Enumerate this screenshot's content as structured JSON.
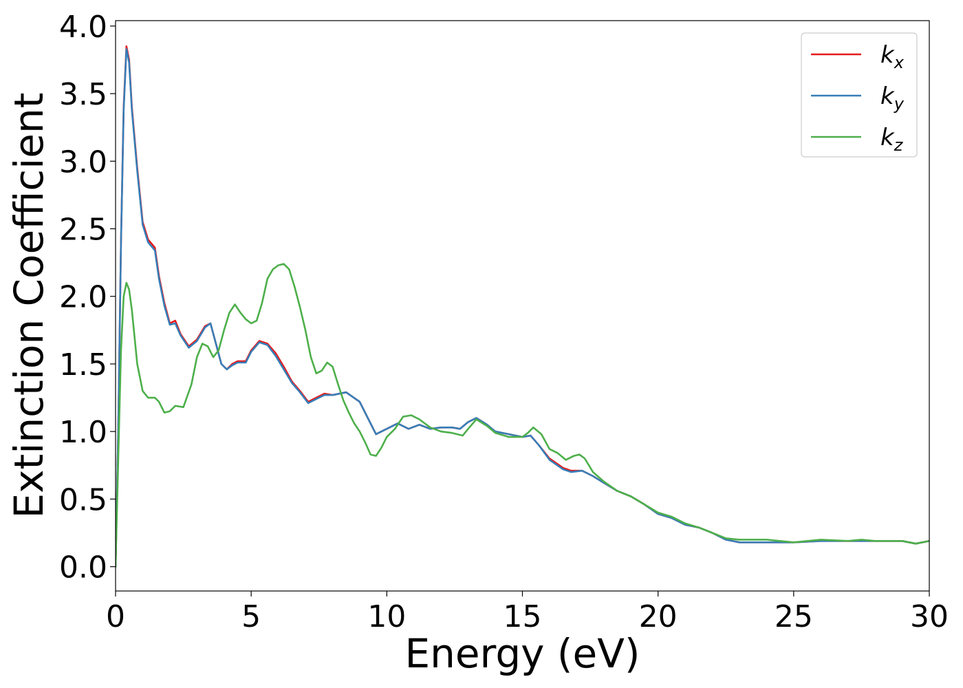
{
  "chart_data": {
    "type": "line",
    "title": "",
    "xlabel": "Energy (eV)",
    "ylabel": "Extinction Coefficient",
    "xlim": [
      0,
      30
    ],
    "ylim": [
      -0.18,
      4.04
    ],
    "x_ticks": [
      0,
      5,
      10,
      15,
      20,
      25,
      30
    ],
    "y_ticks": [
      0.0,
      0.5,
      1.0,
      1.5,
      2.0,
      2.5,
      3.0,
      3.5,
      4.0
    ],
    "x_tick_labels": [
      "0",
      "5",
      "10",
      "15",
      "20",
      "25",
      "30"
    ],
    "y_tick_labels": [
      "0.0",
      "0.5",
      "1.0",
      "1.5",
      "2.0",
      "2.5",
      "3.0",
      "3.5",
      "4.0"
    ],
    "grid": false,
    "legend_position": "top-right",
    "series": [
      {
        "name": "k_x",
        "legend_main": "k",
        "legend_sub": "x",
        "color": "#e41a1c",
        "points": [
          [
            0,
            0
          ],
          [
            0.1,
            1.0
          ],
          [
            0.2,
            2.4
          ],
          [
            0.3,
            3.4
          ],
          [
            0.4,
            3.85
          ],
          [
            0.5,
            3.75
          ],
          [
            0.6,
            3.4
          ],
          [
            0.8,
            2.95
          ],
          [
            1.0,
            2.55
          ],
          [
            1.2,
            2.42
          ],
          [
            1.45,
            2.36
          ],
          [
            1.6,
            2.15
          ],
          [
            1.8,
            1.95
          ],
          [
            2.0,
            1.8
          ],
          [
            2.2,
            1.82
          ],
          [
            2.4,
            1.72
          ],
          [
            2.7,
            1.63
          ],
          [
            3.0,
            1.68
          ],
          [
            3.3,
            1.78
          ],
          [
            3.5,
            1.8
          ],
          [
            3.7,
            1.65
          ],
          [
            3.9,
            1.5
          ],
          [
            4.1,
            1.46
          ],
          [
            4.3,
            1.5
          ],
          [
            4.5,
            1.52
          ],
          [
            4.8,
            1.52
          ],
          [
            5.0,
            1.6
          ],
          [
            5.3,
            1.67
          ],
          [
            5.6,
            1.65
          ],
          [
            5.9,
            1.58
          ],
          [
            6.2,
            1.48
          ],
          [
            6.5,
            1.37
          ],
          [
            6.8,
            1.3
          ],
          [
            7.1,
            1.22
          ],
          [
            7.4,
            1.25
          ],
          [
            7.7,
            1.28
          ],
          [
            8.0,
            1.27
          ],
          [
            8.5,
            1.29
          ],
          [
            9.0,
            1.22
          ],
          [
            9.3,
            1.1
          ],
          [
            9.6,
            0.98
          ],
          [
            10.0,
            1.02
          ],
          [
            10.4,
            1.06
          ],
          [
            10.8,
            1.02
          ],
          [
            11.2,
            1.05
          ],
          [
            11.6,
            1.02
          ],
          [
            12.0,
            1.03
          ],
          [
            12.4,
            1.03
          ],
          [
            12.7,
            1.02
          ],
          [
            13.0,
            1.07
          ],
          [
            13.3,
            1.1
          ],
          [
            13.7,
            1.05
          ],
          [
            14.0,
            1.0
          ],
          [
            14.5,
            0.98
          ],
          [
            15.0,
            0.96
          ],
          [
            15.3,
            0.97
          ],
          [
            15.6,
            0.9
          ],
          [
            16.0,
            0.8
          ],
          [
            16.5,
            0.73
          ],
          [
            16.8,
            0.71
          ],
          [
            17.2,
            0.71
          ],
          [
            17.6,
            0.67
          ],
          [
            18.0,
            0.62
          ],
          [
            18.5,
            0.56
          ],
          [
            19.0,
            0.52
          ],
          [
            19.5,
            0.46
          ],
          [
            20.0,
            0.39
          ],
          [
            20.5,
            0.36
          ],
          [
            21.0,
            0.31
          ],
          [
            21.5,
            0.29
          ],
          [
            22.0,
            0.25
          ],
          [
            22.5,
            0.2
          ],
          [
            23.0,
            0.18
          ],
          [
            24.0,
            0.18
          ],
          [
            25.0,
            0.18
          ],
          [
            26.0,
            0.19
          ],
          [
            27.0,
            0.19
          ],
          [
            28.0,
            0.19
          ],
          [
            29.0,
            0.19
          ],
          [
            29.5,
            0.17
          ],
          [
            30.0,
            0.19
          ]
        ]
      },
      {
        "name": "k_y",
        "legend_main": "k",
        "legend_sub": "y",
        "color": "#377eb8",
        "points": [
          [
            0,
            0
          ],
          [
            0.1,
            1.0
          ],
          [
            0.2,
            2.4
          ],
          [
            0.3,
            3.38
          ],
          [
            0.4,
            3.83
          ],
          [
            0.5,
            3.73
          ],
          [
            0.6,
            3.38
          ],
          [
            0.8,
            2.93
          ],
          [
            1.0,
            2.53
          ],
          [
            1.2,
            2.4
          ],
          [
            1.45,
            2.34
          ],
          [
            1.6,
            2.13
          ],
          [
            1.8,
            1.93
          ],
          [
            2.0,
            1.79
          ],
          [
            2.2,
            1.8
          ],
          [
            2.4,
            1.71
          ],
          [
            2.7,
            1.62
          ],
          [
            3.0,
            1.67
          ],
          [
            3.3,
            1.77
          ],
          [
            3.5,
            1.8
          ],
          [
            3.7,
            1.65
          ],
          [
            3.9,
            1.5
          ],
          [
            4.1,
            1.46
          ],
          [
            4.3,
            1.49
          ],
          [
            4.5,
            1.51
          ],
          [
            4.8,
            1.51
          ],
          [
            5.0,
            1.59
          ],
          [
            5.3,
            1.66
          ],
          [
            5.6,
            1.64
          ],
          [
            5.9,
            1.56
          ],
          [
            6.2,
            1.46
          ],
          [
            6.5,
            1.36
          ],
          [
            6.8,
            1.29
          ],
          [
            7.1,
            1.21
          ],
          [
            7.4,
            1.24
          ],
          [
            7.7,
            1.27
          ],
          [
            8.0,
            1.27
          ],
          [
            8.5,
            1.29
          ],
          [
            9.0,
            1.22
          ],
          [
            9.3,
            1.1
          ],
          [
            9.6,
            0.98
          ],
          [
            10.0,
            1.02
          ],
          [
            10.4,
            1.06
          ],
          [
            10.8,
            1.02
          ],
          [
            11.2,
            1.05
          ],
          [
            11.6,
            1.02
          ],
          [
            12.0,
            1.03
          ],
          [
            12.4,
            1.03
          ],
          [
            12.7,
            1.02
          ],
          [
            13.0,
            1.07
          ],
          [
            13.3,
            1.1
          ],
          [
            13.7,
            1.05
          ],
          [
            14.0,
            1.0
          ],
          [
            14.5,
            0.98
          ],
          [
            15.0,
            0.96
          ],
          [
            15.3,
            0.97
          ],
          [
            15.6,
            0.9
          ],
          [
            16.0,
            0.79
          ],
          [
            16.5,
            0.72
          ],
          [
            16.8,
            0.7
          ],
          [
            17.2,
            0.71
          ],
          [
            17.6,
            0.67
          ],
          [
            18.0,
            0.62
          ],
          [
            18.5,
            0.56
          ],
          [
            19.0,
            0.52
          ],
          [
            19.5,
            0.46
          ],
          [
            20.0,
            0.39
          ],
          [
            20.5,
            0.36
          ],
          [
            21.0,
            0.31
          ],
          [
            21.5,
            0.29
          ],
          [
            22.0,
            0.25
          ],
          [
            22.5,
            0.2
          ],
          [
            23.0,
            0.18
          ],
          [
            24.0,
            0.18
          ],
          [
            25.0,
            0.18
          ],
          [
            26.0,
            0.19
          ],
          [
            27.0,
            0.19
          ],
          [
            28.0,
            0.19
          ],
          [
            29.0,
            0.19
          ],
          [
            29.5,
            0.17
          ],
          [
            30.0,
            0.19
          ]
        ]
      },
      {
        "name": "k_z",
        "legend_main": "k",
        "legend_sub": "z",
        "color": "#4daf4a",
        "points": [
          [
            0,
            0
          ],
          [
            0.1,
            0.8
          ],
          [
            0.2,
            1.6
          ],
          [
            0.3,
            2.0
          ],
          [
            0.4,
            2.1
          ],
          [
            0.5,
            2.05
          ],
          [
            0.6,
            1.9
          ],
          [
            0.8,
            1.5
          ],
          [
            1.0,
            1.3
          ],
          [
            1.2,
            1.25
          ],
          [
            1.45,
            1.25
          ],
          [
            1.6,
            1.22
          ],
          [
            1.8,
            1.14
          ],
          [
            2.0,
            1.15
          ],
          [
            2.2,
            1.19
          ],
          [
            2.5,
            1.18
          ],
          [
            2.8,
            1.35
          ],
          [
            3.0,
            1.55
          ],
          [
            3.2,
            1.65
          ],
          [
            3.4,
            1.63
          ],
          [
            3.6,
            1.55
          ],
          [
            3.8,
            1.6
          ],
          [
            4.0,
            1.75
          ],
          [
            4.2,
            1.88
          ],
          [
            4.4,
            1.94
          ],
          [
            4.6,
            1.88
          ],
          [
            4.8,
            1.83
          ],
          [
            5.0,
            1.8
          ],
          [
            5.2,
            1.82
          ],
          [
            5.4,
            1.95
          ],
          [
            5.6,
            2.13
          ],
          [
            5.8,
            2.2
          ],
          [
            6.0,
            2.23
          ],
          [
            6.2,
            2.24
          ],
          [
            6.4,
            2.2
          ],
          [
            6.6,
            2.07
          ],
          [
            6.8,
            1.92
          ],
          [
            7.0,
            1.75
          ],
          [
            7.2,
            1.55
          ],
          [
            7.4,
            1.43
          ],
          [
            7.6,
            1.45
          ],
          [
            7.8,
            1.51
          ],
          [
            8.0,
            1.48
          ],
          [
            8.2,
            1.35
          ],
          [
            8.4,
            1.23
          ],
          [
            8.6,
            1.14
          ],
          [
            8.8,
            1.06
          ],
          [
            9.0,
            1.0
          ],
          [
            9.2,
            0.92
          ],
          [
            9.4,
            0.83
          ],
          [
            9.6,
            0.82
          ],
          [
            9.8,
            0.88
          ],
          [
            10.0,
            0.96
          ],
          [
            10.3,
            1.02
          ],
          [
            10.6,
            1.11
          ],
          [
            10.9,
            1.12
          ],
          [
            11.2,
            1.09
          ],
          [
            11.6,
            1.03
          ],
          [
            12.0,
            1.0
          ],
          [
            12.4,
            0.99
          ],
          [
            12.8,
            0.97
          ],
          [
            13.0,
            1.02
          ],
          [
            13.3,
            1.09
          ],
          [
            13.7,
            1.04
          ],
          [
            14.0,
            0.99
          ],
          [
            14.5,
            0.96
          ],
          [
            15.0,
            0.96
          ],
          [
            15.2,
            0.99
          ],
          [
            15.4,
            1.03
          ],
          [
            15.7,
            0.98
          ],
          [
            16.0,
            0.87
          ],
          [
            16.3,
            0.84
          ],
          [
            16.6,
            0.79
          ],
          [
            16.9,
            0.82
          ],
          [
            17.1,
            0.83
          ],
          [
            17.3,
            0.8
          ],
          [
            17.6,
            0.7
          ],
          [
            18.0,
            0.63
          ],
          [
            18.5,
            0.56
          ],
          [
            19.0,
            0.52
          ],
          [
            19.5,
            0.46
          ],
          [
            20.0,
            0.4
          ],
          [
            20.5,
            0.37
          ],
          [
            21.0,
            0.32
          ],
          [
            21.5,
            0.29
          ],
          [
            22.0,
            0.25
          ],
          [
            22.5,
            0.21
          ],
          [
            23.0,
            0.2
          ],
          [
            24.0,
            0.2
          ],
          [
            25.0,
            0.18
          ],
          [
            26.0,
            0.2
          ],
          [
            27.0,
            0.19
          ],
          [
            27.5,
            0.2
          ],
          [
            28.0,
            0.19
          ],
          [
            29.0,
            0.19
          ],
          [
            29.5,
            0.17
          ],
          [
            30.0,
            0.19
          ]
        ]
      }
    ]
  }
}
